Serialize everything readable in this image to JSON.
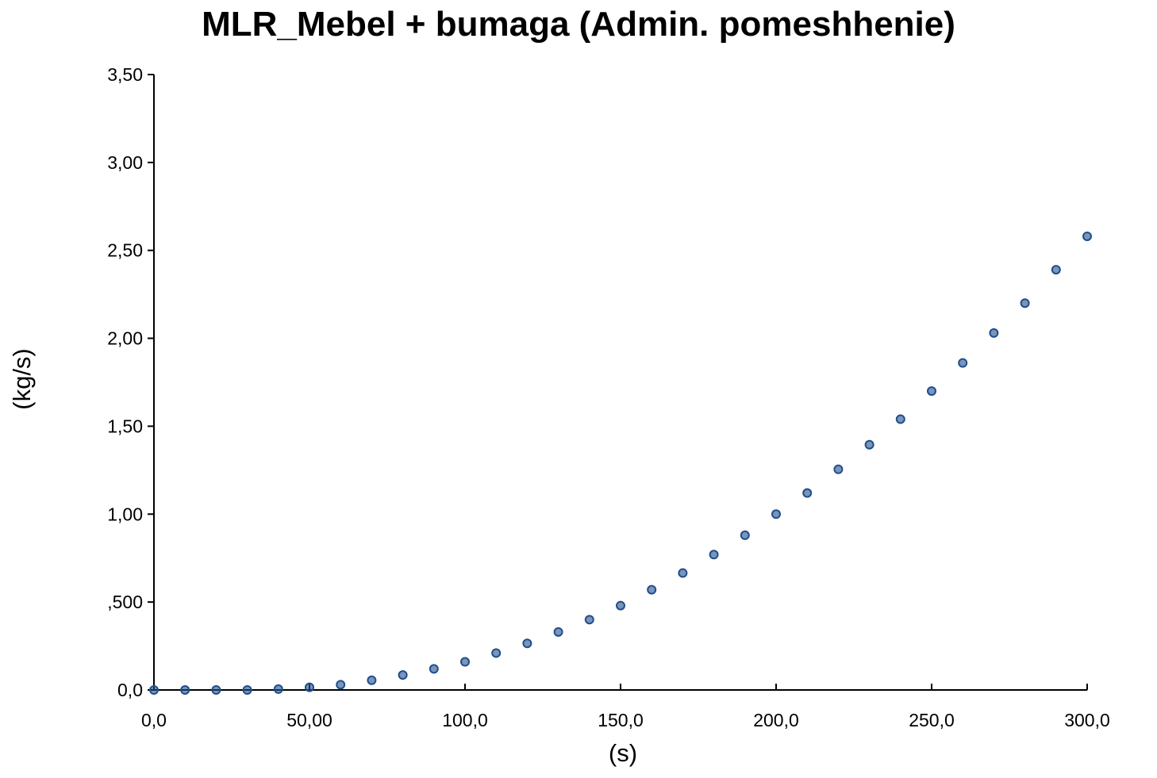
{
  "chart_data": {
    "type": "scatter",
    "title": "MLR_Mebel + bumaga (Admin. pomeshhenie)",
    "xlabel": "(s)",
    "ylabel": "(kg/s)",
    "xlim": [
      0,
      300
    ],
    "ylim": [
      0,
      3.5
    ],
    "xticks": [
      0,
      50,
      100,
      150,
      200,
      250,
      300
    ],
    "xtick_labels": [
      "0,0",
      "50,00",
      "100,0",
      "150,0",
      "200,0",
      "250,0",
      "300,0"
    ],
    "yticks": [
      0,
      0.5,
      1,
      1.5,
      2,
      2.5,
      3,
      3.5
    ],
    "ytick_labels": [
      "0,0",
      ",500",
      "1,00",
      "1,50",
      "2,00",
      "2,50",
      "3,00",
      "3,50"
    ],
    "grid": false,
    "marker_color": "#1f4e8c",
    "x": [
      0,
      10,
      20,
      30,
      40,
      50,
      60,
      70,
      80,
      90,
      100,
      110,
      120,
      130,
      140,
      150,
      160,
      170,
      180,
      190,
      200,
      210,
      220,
      230,
      240,
      250,
      260,
      270,
      280,
      290,
      300
    ],
    "y": [
      0.0,
      0.0,
      0.0,
      0.0,
      0.005,
      0.015,
      0.03,
      0.055,
      0.085,
      0.12,
      0.16,
      0.21,
      0.265,
      0.33,
      0.4,
      0.48,
      0.57,
      0.665,
      0.77,
      0.88,
      1.0,
      1.12,
      1.255,
      1.395,
      1.54,
      1.7,
      1.86,
      2.03,
      2.2,
      2.39,
      2.58
    ]
  }
}
